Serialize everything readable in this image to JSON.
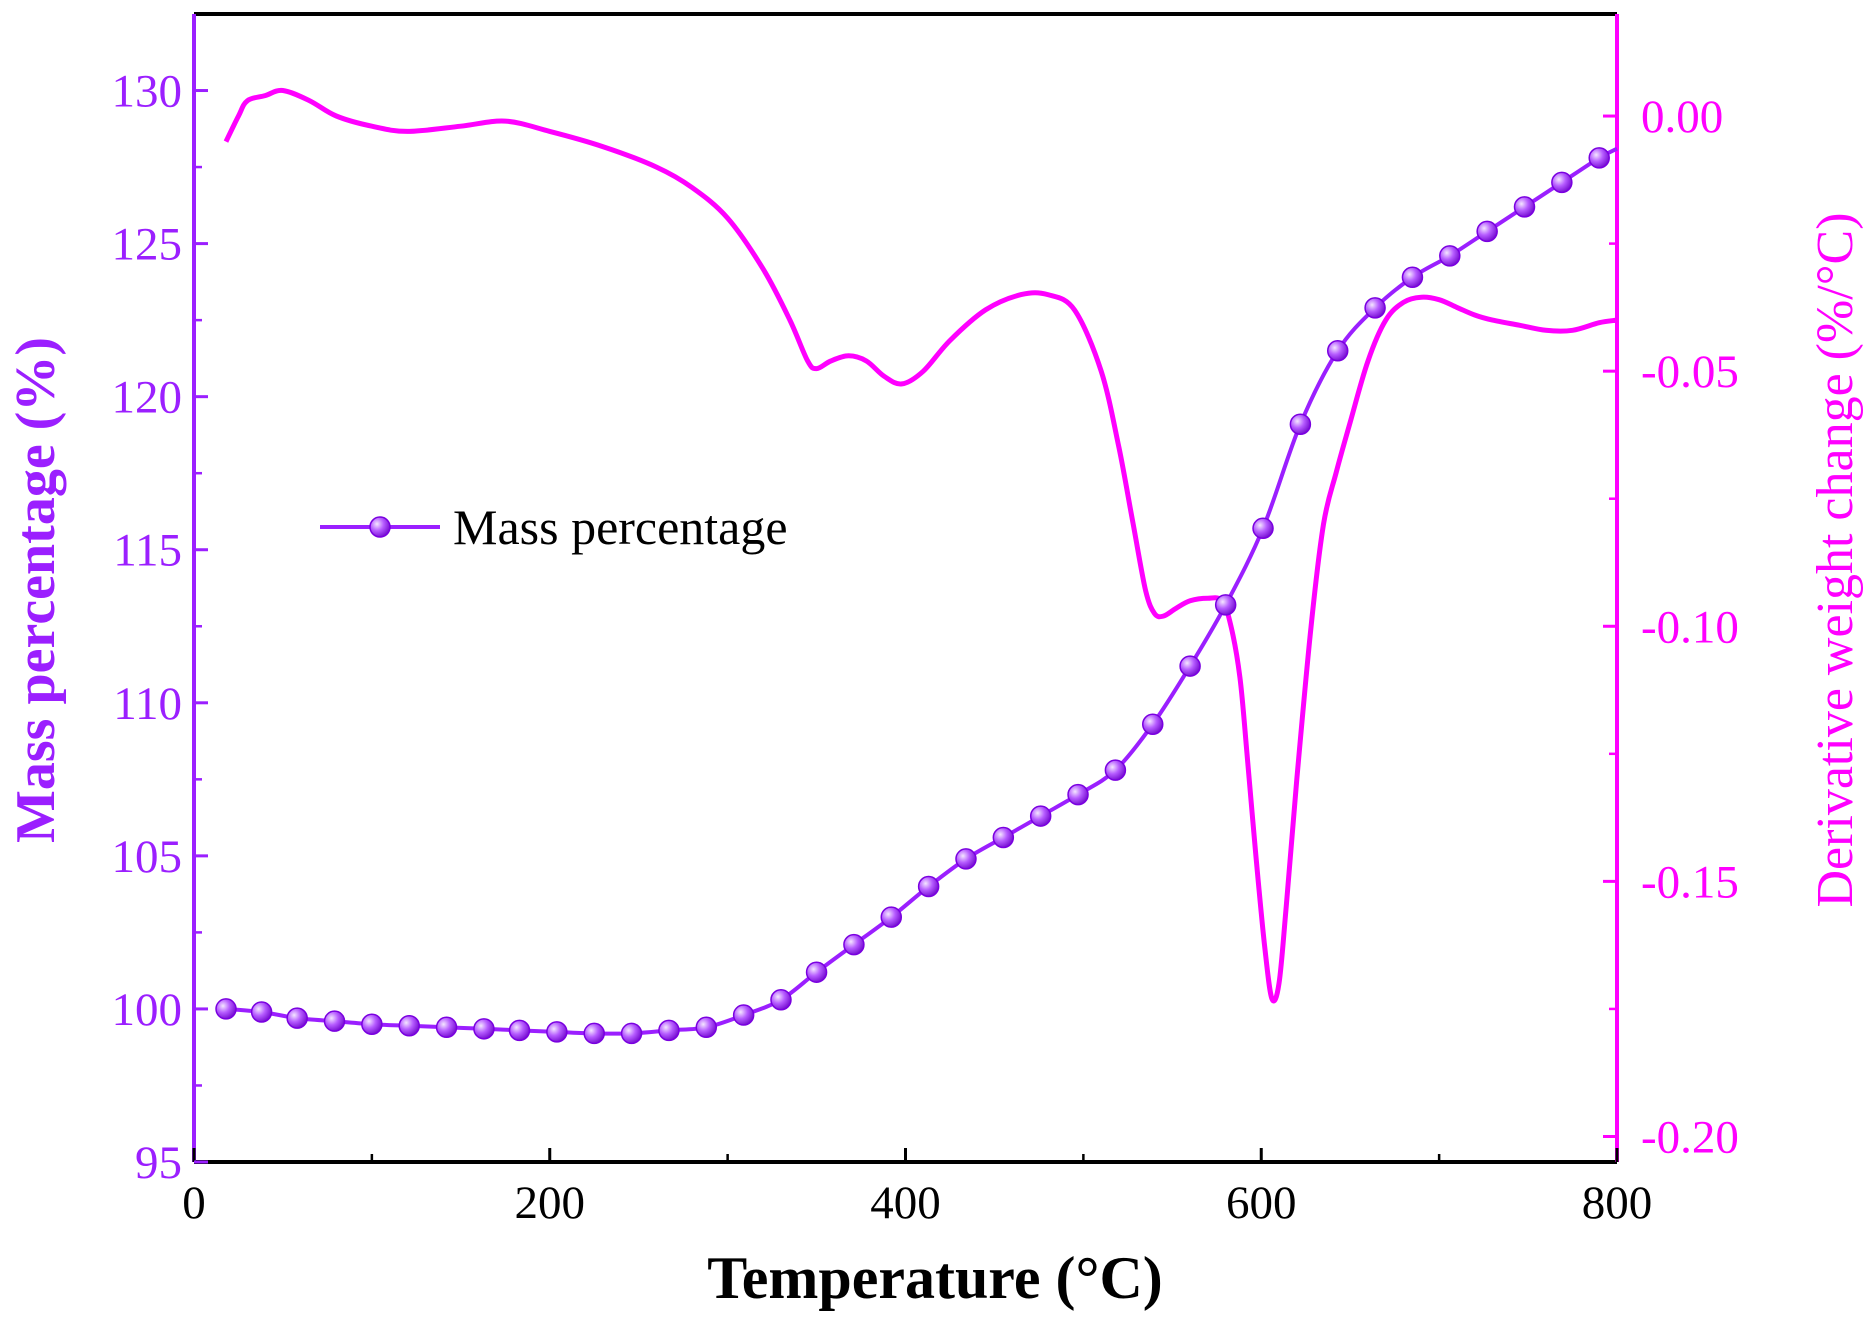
{
  "chart_data": {
    "type": "line",
    "xlabel": "Temperature (°C)",
    "ylabel_left": "Mass percentage (%)",
    "ylabel_right": "Derivative weight change (%/°C)",
    "xlim": [
      0,
      800
    ],
    "ylim_left": [
      95,
      132.5
    ],
    "ylim_right": [
      -0.205,
      0.02
    ],
    "x_ticks": [
      "0",
      "200",
      "400",
      "600",
      "800"
    ],
    "y_left_ticks": [
      "95",
      "100",
      "105",
      "110",
      "115",
      "120",
      "125",
      "130"
    ],
    "y_right_ticks": [
      "-0.20",
      "-0.15",
      "-0.10",
      "-0.05",
      "0.00"
    ],
    "legend": {
      "label": "Mass percentage",
      "position": "center-left"
    },
    "colors": {
      "mass": "#9b1fff",
      "derivative": "#ff00ff",
      "frame": "#000000"
    },
    "series": [
      {
        "name": "Mass percentage",
        "axis": "left",
        "markers": true,
        "x": [
          18,
          38,
          58,
          79,
          100,
          121,
          142,
          163,
          183,
          204,
          225,
          246,
          267,
          288,
          309,
          330,
          350,
          371,
          392,
          413,
          434,
          455,
          476,
          497,
          518,
          539,
          560,
          580,
          601,
          622,
          643,
          664,
          685,
          706,
          727,
          748,
          769,
          790
        ],
        "values": [
          100.0,
          99.9,
          99.7,
          99.6,
          99.5,
          99.45,
          99.4,
          99.35,
          99.3,
          99.25,
          99.2,
          99.2,
          99.3,
          99.4,
          99.8,
          100.3,
          101.2,
          102.1,
          103.0,
          104.0,
          104.9,
          105.6,
          106.3,
          107.0,
          107.8,
          109.3,
          111.2,
          113.2,
          115.7,
          119.1,
          121.5,
          122.9,
          123.9,
          124.6,
          125.4,
          126.2,
          127.0,
          127.8
        ]
      },
      {
        "name": "Derivative weight change",
        "axis": "right",
        "markers": false,
        "x": [
          18,
          25,
          30,
          40,
          50,
          65,
          80,
          100,
          120,
          150,
          175,
          200,
          230,
          260,
          280,
          300,
          320,
          335,
          345,
          350,
          358,
          368,
          378,
          388,
          398,
          410,
          425,
          445,
          465,
          480,
          495,
          510,
          520,
          528,
          535,
          540,
          545,
          552,
          560,
          570,
          578,
          583,
          588,
          592,
          597,
          602,
          606,
          610,
          614,
          620,
          628,
          635,
          642,
          650,
          660,
          670,
          680,
          690,
          700,
          710,
          720,
          730,
          745,
          760,
          775,
          790,
          800
        ],
        "values": [
          -0.005,
          0.0,
          0.003,
          0.004,
          0.005,
          0.003,
          0.0,
          -0.002,
          -0.003,
          -0.002,
          -0.001,
          -0.003,
          -0.006,
          -0.01,
          -0.014,
          -0.02,
          -0.03,
          -0.04,
          -0.048,
          -0.0495,
          -0.048,
          -0.047,
          -0.048,
          -0.051,
          -0.0525,
          -0.05,
          -0.044,
          -0.038,
          -0.035,
          -0.035,
          -0.038,
          -0.05,
          -0.065,
          -0.08,
          -0.093,
          -0.0975,
          -0.098,
          -0.0965,
          -0.095,
          -0.0945,
          -0.095,
          -0.1,
          -0.11,
          -0.125,
          -0.145,
          -0.163,
          -0.173,
          -0.17,
          -0.155,
          -0.13,
          -0.1,
          -0.08,
          -0.07,
          -0.06,
          -0.048,
          -0.04,
          -0.0365,
          -0.0355,
          -0.036,
          -0.0375,
          -0.039,
          -0.04,
          -0.041,
          -0.042,
          -0.042,
          -0.0405,
          -0.04
        ]
      }
    ]
  }
}
